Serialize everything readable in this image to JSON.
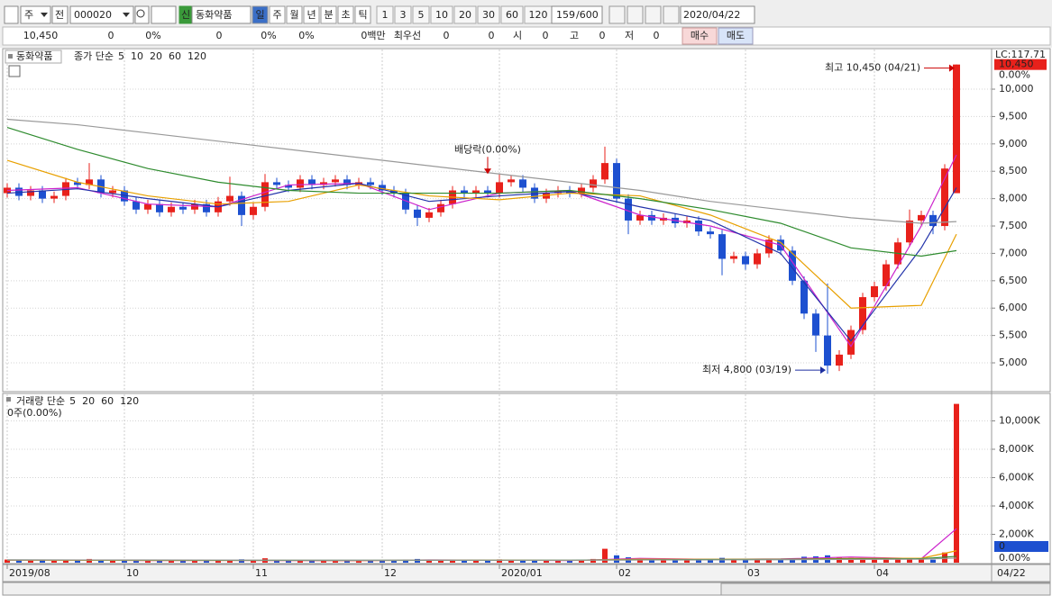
{
  "toolbar": {
    "period": "주",
    "prev": "전",
    "code": "000020",
    "badge": "신",
    "name": "동화약품",
    "units": [
      "일",
      "주",
      "월",
      "년",
      "분",
      "초",
      "틱"
    ],
    "multipliers": [
      "1",
      "3",
      "5",
      "10",
      "20",
      "30",
      "60",
      "120"
    ],
    "count": "159",
    "max": "/600",
    "date": "2020/04/22"
  },
  "quote_bar": {
    "cells": [
      "10,450",
      "0",
      "0%",
      "0",
      "0%",
      "0%",
      "0백만",
      "최우선",
      "0",
      "0",
      "시",
      "0",
      "고",
      "0",
      "저",
      "0"
    ],
    "buy": "매수",
    "sell": "매도"
  },
  "chart_data": [
    {
      "type": "candlestick",
      "title": "동화약품",
      "legend_prefix": "종가 단순",
      "xticks": [
        {
          "value": 0,
          "label": "2019/08"
        },
        {
          "value": 10,
          "label": "10"
        },
        {
          "value": 21,
          "label": "11"
        },
        {
          "value": 32,
          "label": "12"
        },
        {
          "value": 42,
          "label": "2020/01"
        },
        {
          "value": 52,
          "label": "02"
        },
        {
          "value": 63,
          "label": "03"
        },
        {
          "value": 74,
          "label": "04"
        }
      ],
      "end_date": "04/22",
      "open": [
        8100,
        8200,
        8050,
        8150,
        8000,
        8050,
        8300,
        8250,
        8350,
        8100,
        8150,
        7950,
        7800,
        7900,
        7750,
        7850,
        7800,
        7900,
        7750,
        7950,
        8050,
        7700,
        7850,
        8300,
        8250,
        8200,
        8350,
        8250,
        8300,
        8350,
        8250,
        8300,
        8250,
        8150,
        8100,
        7800,
        7650,
        7750,
        7900,
        8150,
        8100,
        8150,
        8100,
        8300,
        8350,
        8200,
        8000,
        8100,
        8150,
        8100,
        8200,
        8350,
        8650,
        8000,
        7600,
        7700,
        7600,
        7650,
        7550,
        7600,
        7400,
        7350,
        6900,
        6950,
        6800,
        7000,
        7250,
        7050,
        6500,
        5900,
        5500,
        4950,
        5150,
        5600,
        6200,
        6400,
        6800,
        7200,
        7600,
        7700,
        7500,
        8100
      ],
      "high": [
        8280,
        8280,
        8230,
        8230,
        8130,
        8380,
        8380,
        8650,
        8430,
        8230,
        8230,
        8030,
        7980,
        7980,
        7930,
        7930,
        7980,
        7980,
        8030,
        8400,
        8130,
        7930,
        8450,
        8380,
        8330,
        8430,
        8430,
        8380,
        8430,
        8430,
        8380,
        8380,
        8330,
        8230,
        8180,
        7880,
        7830,
        7980,
        8230,
        8230,
        8230,
        8230,
        8450,
        8430,
        8430,
        8280,
        8180,
        8230,
        8230,
        8280,
        8430,
        8950,
        8730,
        8080,
        7780,
        7780,
        7730,
        7730,
        7680,
        7680,
        7480,
        7430,
        7030,
        7030,
        7080,
        7330,
        7330,
        7130,
        6580,
        5980,
        6450,
        5230,
        5680,
        6280,
        6480,
        6880,
        7280,
        7800,
        7780,
        7780,
        8630,
        10450
      ],
      "low": [
        8020,
        7970,
        7970,
        7920,
        7920,
        7970,
        8170,
        8170,
        8020,
        8020,
        7870,
        7720,
        7720,
        7670,
        7670,
        7720,
        7720,
        7670,
        7670,
        7870,
        7500,
        7620,
        7770,
        8170,
        8120,
        8120,
        8170,
        8170,
        8220,
        8170,
        8170,
        8170,
        8070,
        8020,
        7720,
        7500,
        7570,
        7670,
        7820,
        8020,
        8020,
        8020,
        8020,
        8220,
        8120,
        7920,
        7920,
        8020,
        8020,
        8020,
        8120,
        8270,
        7920,
        7350,
        7520,
        7520,
        7520,
        7470,
        7470,
        7320,
        7270,
        6600,
        6820,
        6700,
        6720,
        6920,
        6970,
        6420,
        5800,
        5200,
        4800,
        4850,
        5070,
        5520,
        6120,
        6320,
        6720,
        7120,
        7520,
        7350,
        7420,
        8100
      ],
      "close": [
        8200,
        8050,
        8150,
        8000,
        8050,
        8300,
        8250,
        8350,
        8100,
        8150,
        7950,
        7800,
        7900,
        7750,
        7850,
        7800,
        7900,
        7750,
        7950,
        8050,
        7700,
        7850,
        8300,
        8250,
        8200,
        8350,
        8250,
        8300,
        8350,
        8250,
        8300,
        8250,
        8150,
        8100,
        7800,
        7650,
        7750,
        7900,
        8150,
        8100,
        8150,
        8100,
        8300,
        8350,
        8200,
        8000,
        8100,
        8150,
        8100,
        8200,
        8350,
        8650,
        8000,
        7600,
        7700,
        7600,
        7650,
        7550,
        7600,
        7400,
        7350,
        6900,
        6950,
        6800,
        7000,
        7250,
        7050,
        6500,
        5900,
        5500,
        4950,
        5150,
        5600,
        6200,
        6400,
        6800,
        7200,
        7600,
        7700,
        7500,
        8550,
        10450
      ],
      "up_color": "#e8211b",
      "down_color": "#1d50d0",
      "ylim": [
        4474,
        10609
      ],
      "yticks": [
        {
          "value": 5000,
          "label": "5,000"
        },
        {
          "value": 5500,
          "label": "5,500"
        },
        {
          "value": 6000,
          "label": "6,000"
        },
        {
          "value": 6500,
          "label": "6,500"
        },
        {
          "value": 7000,
          "label": "7,000"
        },
        {
          "value": 7500,
          "label": "7,500"
        },
        {
          "value": 8000,
          "label": "8,000"
        },
        {
          "value": 8500,
          "label": "8,500"
        },
        {
          "value": 9000,
          "label": "9,000"
        },
        {
          "value": 9500,
          "label": "9,500"
        },
        {
          "value": 10000,
          "label": "10,000"
        }
      ],
      "grid": true,
      "ma_x": [
        0,
        6,
        12,
        18,
        24,
        30,
        36,
        42,
        48,
        54,
        60,
        66,
        72,
        78,
        81
      ],
      "series": [
        {
          "name": "5",
          "color": "#cc22cc",
          "values": [
            8150,
            8200,
            7900,
            7850,
            8250,
            8280,
            7800,
            8100,
            8150,
            7700,
            7500,
            7150,
            5300,
            7500,
            8800
          ]
        },
        {
          "name": "10",
          "color": "#2233aa",
          "values": [
            8100,
            8180,
            8000,
            7850,
            8150,
            8280,
            7950,
            8050,
            8130,
            7850,
            7600,
            7000,
            5400,
            7100,
            8200
          ]
        },
        {
          "name": "20",
          "color": "#e8a000",
          "values": [
            8700,
            8300,
            8050,
            7900,
            7950,
            8250,
            8050,
            7980,
            8100,
            8050,
            7700,
            7200,
            6000,
            6050,
            7350
          ]
        },
        {
          "name": "60",
          "color": "#2e8b2e",
          "values": [
            9300,
            8900,
            8550,
            8300,
            8150,
            8100,
            8100,
            8100,
            8150,
            8000,
            7800,
            7550,
            7100,
            6950,
            7050
          ]
        },
        {
          "name": "120",
          "color": "#999999",
          "values": [
            9450,
            9350,
            9200,
            9050,
            8900,
            8750,
            8600,
            8450,
            8300,
            8150,
            7950,
            7800,
            7650,
            7550,
            7580
          ]
        }
      ],
      "annotations": [
        {
          "text": "최고 10,450 (04/21)",
          "index": 81,
          "value": 10450,
          "color": "#cc0000"
        },
        {
          "text": "최저 4,800 (03/19)",
          "index": 70,
          "value": 4800,
          "color": "#1d2fa0"
        },
        {
          "text": "배당락(0.00%)",
          "index": 41,
          "value": 8400,
          "color": "#222222"
        }
      ],
      "scale_label": "LC:117.71",
      "last_label": "10,450",
      "change_label": "0.00%"
    },
    {
      "type": "bar",
      "legend_prefix": "거래량 단순",
      "info": "0주(0.00%)",
      "values": [
        220,
        180,
        150,
        160,
        140,
        200,
        170,
        260,
        190,
        150,
        170,
        160,
        140,
        150,
        130,
        140,
        150,
        130,
        160,
        210,
        240,
        180,
        310,
        170,
        150,
        160,
        140,
        130,
        150,
        140,
        120,
        130,
        140,
        150,
        220,
        260,
        180,
        170,
        210,
        160,
        150,
        140,
        230,
        200,
        170,
        180,
        140,
        130,
        150,
        170,
        260,
        980,
        520,
        380,
        260,
        200,
        180,
        170,
        160,
        230,
        200,
        340,
        250,
        210,
        220,
        260,
        240,
        310,
        420,
        450,
        520,
        380,
        330,
        300,
        310,
        280,
        290,
        260,
        230,
        210,
        720,
        11200
      ],
      "ylim": [
        0,
        11556
      ],
      "yticks": [
        {
          "value": 2000,
          "label": "2,000K"
        },
        {
          "value": 4000,
          "label": "4,000K"
        },
        {
          "value": 6000,
          "label": "6,000K"
        },
        {
          "value": 8000,
          "label": "8,000K"
        },
        {
          "value": 10000,
          "label": "10,000K"
        }
      ],
      "ma_x": [
        0,
        6,
        12,
        18,
        24,
        30,
        36,
        42,
        48,
        54,
        60,
        66,
        72,
        78,
        81
      ],
      "series": [
        {
          "name": "5",
          "color": "#cc22cc",
          "values": [
            180,
            180,
            150,
            160,
            150,
            140,
            190,
            180,
            150,
            300,
            230,
            260,
            400,
            280,
            2400
          ]
        },
        {
          "name": "20",
          "color": "#e8a000",
          "values": [
            180,
            175,
            160,
            155,
            160,
            150,
            165,
            175,
            165,
            250,
            240,
            240,
            300,
            310,
            840
          ]
        },
        {
          "name": "60",
          "color": "#2e8b2e",
          "values": [
            190,
            185,
            180,
            170,
            165,
            165,
            165,
            170,
            180,
            200,
            220,
            235,
            260,
            280,
            450
          ]
        },
        {
          "name": "120",
          "color": "#999999",
          "values": [
            200,
            195,
            190,
            185,
            180,
            175,
            172,
            172,
            175,
            185,
            195,
            205,
            225,
            245,
            320
          ]
        }
      ],
      "last_label": "0",
      "change_label": "0.00%"
    }
  ]
}
